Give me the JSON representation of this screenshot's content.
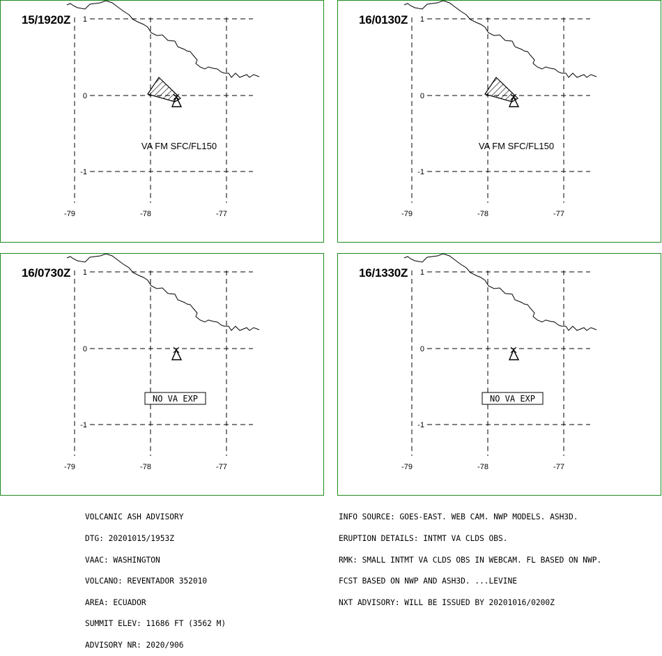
{
  "panels": [
    {
      "time": "15/1920Z",
      "label": "VA FM SFC/FL150",
      "label_boxed": false,
      "ash_area": true
    },
    {
      "time": "16/0130Z",
      "label": "VA FM SFC/FL150",
      "label_boxed": false,
      "ash_area": true
    },
    {
      "time": "16/0730Z",
      "label": "NO VA EXP",
      "label_boxed": true,
      "ash_area": false
    },
    {
      "time": "16/1330Z",
      "label": "NO VA EXP",
      "label_boxed": true,
      "ash_area": false
    }
  ],
  "axes": {
    "lat_labels": [
      "1",
      "0",
      "-1"
    ],
    "lon_labels": [
      "-79",
      "-78",
      "-77"
    ]
  },
  "advisory_left": {
    "title": "VOLCANIC ASH ADVISORY",
    "dtg": "DTG: 20201015/1953Z",
    "vaac": "VAAC: WASHINGTON",
    "volcano": "VOLCANO: REVENTADOR 352010",
    "area": "AREA: ECUADOR",
    "summit": "SUMMIT ELEV: 11686 FT (3562 M)",
    "advisory_nr": "ADVISORY NR: 2020/906"
  },
  "advisory_right": {
    "info_source": "INFO SOURCE: GOES-EAST. WEB CAM. NWP MODELS. ASH3D.",
    "eruption": "ERUPTION DETAILS: INTMT VA CLDS OBS.",
    "rmk": "RMK: SMALL INTMT VA CLDS OBS IN WEBCAM. FL BASED ON NWP.",
    "fcst": "FCST BASED ON NWP AND ASH3D. ...LEVINE",
    "nxt": "NXT ADVISORY: WILL BE ISSUED BY 20201016/0200Z"
  },
  "colors": {
    "panel_border": "#1f8a1f",
    "lines": "#000000",
    "background": "#ffffff"
  }
}
